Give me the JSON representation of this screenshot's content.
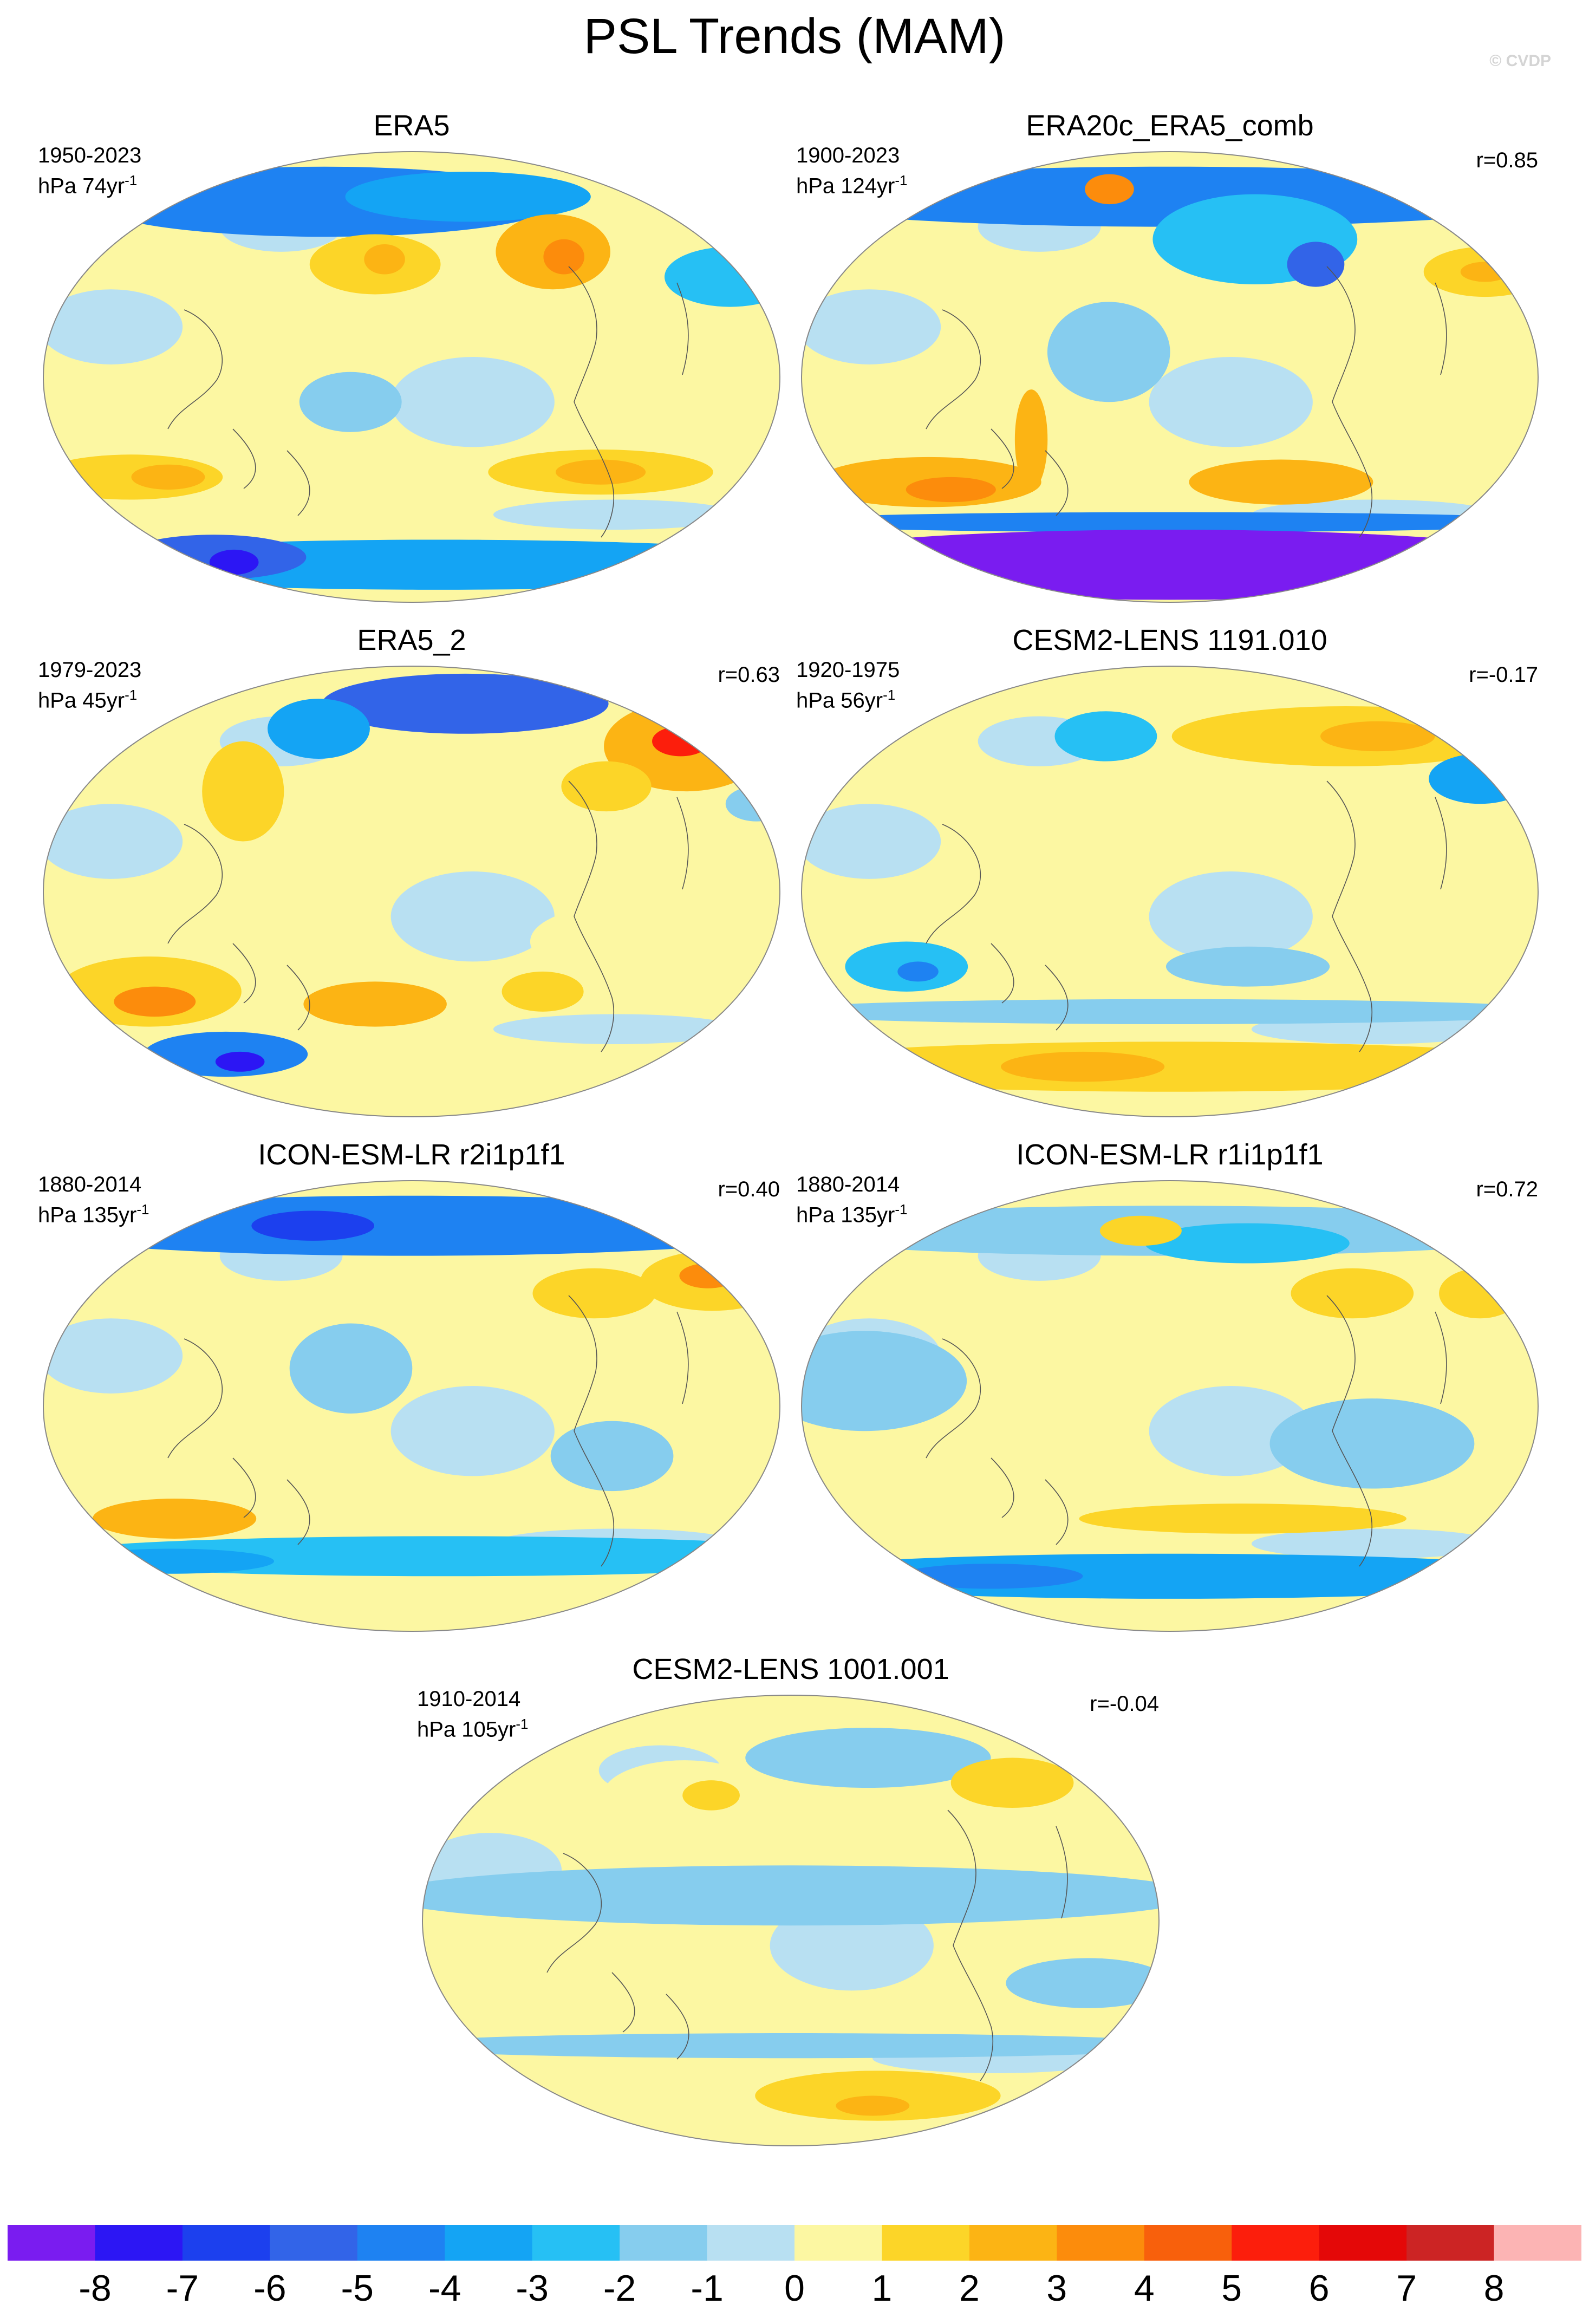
{
  "title": "PSL Trends (MAM)",
  "copyright": "© CVDP",
  "colors": {
    "neg8": "#7a1cf0",
    "neg7": "#2c16f4",
    "neg6": "#1c40ee",
    "neg5": "#3264e8",
    "neg4": "#1e82f2",
    "neg3": "#14a4f4",
    "neg2": "#26c0f4",
    "neg1": "#86cdee",
    "zero": "#b8e0f2",
    "pos1": "#fcf7a2",
    "pos2": "#fcd528",
    "pos3": "#fcb414",
    "pos4": "#fc8c0c",
    "pos5": "#f8600c",
    "pos6": "#fc1e0c",
    "pos7": "#e40808",
    "pos8": "#cc2424",
    "top": "#fcb4b4"
  },
  "panels": [
    {
      "title": "ERA5",
      "years": "1950-2023",
      "units": "hPa 74yr",
      "sup": "-1",
      "corr": ""
    },
    {
      "title": "ERA20c_ERA5_comb",
      "years": "1900-2023",
      "units": "hPa 124yr",
      "sup": "-1",
      "corr": "r=0.85"
    },
    {
      "title": "ERA5_2",
      "years": "1979-2023",
      "units": "hPa 45yr",
      "sup": "-1",
      "corr": "r=0.63"
    },
    {
      "title": "CESM2-LENS 1191.010",
      "years": "1920-1975",
      "units": "hPa 56yr",
      "sup": "-1",
      "corr": "r=-0.17"
    },
    {
      "title": "ICON-ESM-LR r2i1p1f1",
      "years": "1880-2014",
      "units": "hPa 135yr",
      "sup": "-1",
      "corr": "r=0.40"
    },
    {
      "title": "ICON-ESM-LR r1i1p1f1",
      "years": "1880-2014",
      "units": "hPa 135yr",
      "sup": "-1",
      "corr": "r=0.72"
    },
    {
      "title": "CESM2-LENS 1001.001",
      "years": "1910-2014",
      "units": "hPa 105yr",
      "sup": "-1",
      "corr": "r=-0.04"
    }
  ],
  "chart_data": {
    "type": "heatmap",
    "title": "PSL Trends (MAM)",
    "projection": "robinson",
    "colorbar": {
      "ticks": [
        "-8",
        "-7",
        "-6",
        "-5",
        "-4",
        "-3",
        "-2",
        "-1",
        "0",
        "1",
        "2",
        "3",
        "4",
        "5",
        "6",
        "7",
        "8"
      ],
      "levels": [
        -8,
        -7,
        -6,
        -5,
        -4,
        -3,
        -2,
        -1,
        0,
        1,
        2,
        3,
        4,
        5,
        6,
        7,
        8
      ],
      "units": "hPa"
    },
    "fields": [
      {
        "panel": "ERA5",
        "blobs": [
          {
            "lon": -60,
            "lat": 70,
            "rx": 115,
            "ry": 14,
            "v": -4
          },
          {
            "lon": 40,
            "lat": 72,
            "rx": 60,
            "ry": 10,
            "v": -3
          },
          {
            "lon": 80,
            "lat": 50,
            "rx": 28,
            "ry": 15,
            "v": 3
          },
          {
            "lon": 85,
            "lat": 48,
            "rx": 10,
            "ry": 7,
            "v": 4
          },
          {
            "lon": 170,
            "lat": 40,
            "rx": 32,
            "ry": 12,
            "v": -2
          },
          {
            "lon": -20,
            "lat": 45,
            "rx": 32,
            "ry": 12,
            "v": 2
          },
          {
            "lon": -15,
            "lat": 47,
            "rx": 10,
            "ry": 6,
            "v": 3
          },
          {
            "lon": 100,
            "lat": -38,
            "rx": 55,
            "ry": 9,
            "v": 2
          },
          {
            "lon": 100,
            "lat": -38,
            "rx": 22,
            "ry": 5,
            "v": 3
          },
          {
            "lon": -150,
            "lat": -40,
            "rx": 45,
            "ry": 9,
            "v": 2
          },
          {
            "lon": -130,
            "lat": -40,
            "rx": 18,
            "ry": 5,
            "v": 3
          },
          {
            "lon": 20,
            "lat": -75,
            "rx": 200,
            "ry": 10,
            "v": -3
          },
          {
            "lon": -140,
            "lat": -72,
            "rx": 45,
            "ry": 9,
            "v": -5
          },
          {
            "lon": -130,
            "lat": -74,
            "rx": 12,
            "ry": 5,
            "v": -7
          },
          {
            "lon": -30,
            "lat": -10,
            "rx": 25,
            "ry": 12,
            "v": -1
          }
        ]
      },
      {
        "panel": "ERA20c_ERA5_comb",
        "blobs": [
          {
            "lon": 0,
            "lat": 72,
            "rx": 200,
            "ry": 12,
            "v": -4
          },
          {
            "lon": 50,
            "lat": 55,
            "rx": 50,
            "ry": 18,
            "v": -2
          },
          {
            "lon": 80,
            "lat": 45,
            "rx": 14,
            "ry": 9,
            "v": -5
          },
          {
            "lon": 170,
            "lat": 42,
            "rx": 30,
            "ry": 10,
            "v": 2
          },
          {
            "lon": 170,
            "lat": 42,
            "rx": 12,
            "ry": 4,
            "v": 3
          },
          {
            "lon": -45,
            "lat": 75,
            "rx": 12,
            "ry": 6,
            "v": 4
          },
          {
            "lon": 60,
            "lat": -42,
            "rx": 45,
            "ry": 9,
            "v": 3
          },
          {
            "lon": -130,
            "lat": -42,
            "rx": 55,
            "ry": 10,
            "v": 3
          },
          {
            "lon": -120,
            "lat": -45,
            "rx": 22,
            "ry": 5,
            "v": 4
          },
          {
            "lon": -70,
            "lat": -25,
            "rx": 8,
            "ry": 20,
            "v": 3
          },
          {
            "lon": 0,
            "lat": -58,
            "rx": 200,
            "ry": 4,
            "v": -4
          },
          {
            "lon": 0,
            "lat": -75,
            "rx": 200,
            "ry": 14,
            "v": -8
          },
          {
            "lon": -30,
            "lat": 10,
            "rx": 30,
            "ry": 20,
            "v": -1
          }
        ]
      },
      {
        "panel": "ERA5_2",
        "blobs": [
          {
            "lon": 40,
            "lat": 75,
            "rx": 70,
            "ry": 12,
            "v": -5
          },
          {
            "lon": -60,
            "lat": 65,
            "rx": 25,
            "ry": 12,
            "v": -3
          },
          {
            "lon": 165,
            "lat": 58,
            "rx": 40,
            "ry": 18,
            "v": 3
          },
          {
            "lon": 165,
            "lat": 60,
            "rx": 14,
            "ry": 6,
            "v": 6
          },
          {
            "lon": -90,
            "lat": 40,
            "rx": 20,
            "ry": 20,
            "v": 2
          },
          {
            "lon": 105,
            "lat": 42,
            "rx": 22,
            "ry": 10,
            "v": 2
          },
          {
            "lon": 180,
            "lat": 35,
            "rx": 15,
            "ry": 7,
            "v": -1
          },
          {
            "lon": -150,
            "lat": -20,
            "rx": 40,
            "ry": 18,
            "v": 1
          },
          {
            "lon": -140,
            "lat": -40,
            "rx": 45,
            "ry": 14,
            "v": 2
          },
          {
            "lon": -140,
            "lat": -44,
            "rx": 20,
            "ry": 6,
            "v": 4
          },
          {
            "lon": -120,
            "lat": -65,
            "rx": 40,
            "ry": 9,
            "v": -4
          },
          {
            "lon": -115,
            "lat": -68,
            "rx": 12,
            "ry": 4,
            "v": -7
          },
          {
            "lon": -20,
            "lat": -45,
            "rx": 35,
            "ry": 9,
            "v": 3
          },
          {
            "lon": 70,
            "lat": -40,
            "rx": 20,
            "ry": 8,
            "v": 2
          },
          {
            "lon": 100,
            "lat": -20,
            "rx": 40,
            "ry": 14,
            "v": 1
          }
        ]
      },
      {
        "panel": "CESM2-LENS 1191.010",
        "blobs": [
          {
            "lon": 110,
            "lat": 62,
            "rx": 85,
            "ry": 12,
            "v": 2
          },
          {
            "lon": 130,
            "lat": 62,
            "rx": 28,
            "ry": 6,
            "v": 3
          },
          {
            "lon": 170,
            "lat": 45,
            "rx": 25,
            "ry": 10,
            "v": -3
          },
          {
            "lon": -40,
            "lat": 62,
            "rx": 25,
            "ry": 10,
            "v": -2
          },
          {
            "lon": -135,
            "lat": -30,
            "rx": 30,
            "ry": 10,
            "v": -2
          },
          {
            "lon": -130,
            "lat": -32,
            "rx": 10,
            "ry": 4,
            "v": -4
          },
          {
            "lon": 40,
            "lat": -30,
            "rx": 40,
            "ry": 8,
            "v": -1
          },
          {
            "lon": 0,
            "lat": -70,
            "rx": 200,
            "ry": 10,
            "v": 2
          },
          {
            "lon": -60,
            "lat": -70,
            "rx": 40,
            "ry": 6,
            "v": 3
          },
          {
            "lon": 0,
            "lat": -48,
            "rx": 200,
            "ry": 5,
            "v": -1
          }
        ]
      },
      {
        "panel": "ICON-ESM-LR r2i1p1f1",
        "blobs": [
          {
            "lon": 0,
            "lat": 72,
            "rx": 200,
            "ry": 12,
            "v": -4
          },
          {
            "lon": -70,
            "lat": 72,
            "rx": 30,
            "ry": 6,
            "v": -6
          },
          {
            "lon": 170,
            "lat": 50,
            "rx": 35,
            "ry": 12,
            "v": 2
          },
          {
            "lon": 170,
            "lat": 52,
            "rx": 14,
            "ry": 5,
            "v": 4
          },
          {
            "lon": 100,
            "lat": 45,
            "rx": 30,
            "ry": 10,
            "v": 2
          },
          {
            "lon": -130,
            "lat": -45,
            "rx": 40,
            "ry": 8,
            "v": 3
          },
          {
            "lon": 20,
            "lat": -60,
            "rx": 200,
            "ry": 8,
            "v": -2
          },
          {
            "lon": -150,
            "lat": -62,
            "rx": 50,
            "ry": 5,
            "v": -3
          },
          {
            "lon": 100,
            "lat": -20,
            "rx": 30,
            "ry": 14,
            "v": -1
          },
          {
            "lon": -30,
            "lat": 15,
            "rx": 30,
            "ry": 18,
            "v": -1
          }
        ]
      },
      {
        "panel": "ICON-ESM-LR r1i1p1f1",
        "blobs": [
          {
            "lon": 0,
            "lat": 70,
            "rx": 200,
            "ry": 10,
            "v": -1
          },
          {
            "lon": 50,
            "lat": 65,
            "rx": 50,
            "ry": 8,
            "v": -2
          },
          {
            "lon": -20,
            "lat": 70,
            "rx": 20,
            "ry": 6,
            "v": 2
          },
          {
            "lon": 100,
            "lat": 45,
            "rx": 30,
            "ry": 10,
            "v": 2
          },
          {
            "lon": 170,
            "lat": 45,
            "rx": 20,
            "ry": 10,
            "v": 2
          },
          {
            "lon": 40,
            "lat": -45,
            "rx": 80,
            "ry": 6,
            "v": 2
          },
          {
            "lon": 0,
            "lat": -68,
            "rx": 200,
            "ry": 9,
            "v": -3
          },
          {
            "lon": -120,
            "lat": -68,
            "rx": 45,
            "ry": 5,
            "v": -4
          },
          {
            "lon": 100,
            "lat": -15,
            "rx": 50,
            "ry": 18,
            "v": -1
          },
          {
            "lon": -150,
            "lat": 10,
            "rx": 50,
            "ry": 20,
            "v": -1
          }
        ]
      },
      {
        "panel": "CESM2-LENS 1001.001",
        "blobs": [
          {
            "lon": 50,
            "lat": 65,
            "rx": 60,
            "ry": 12,
            "v": -1
          },
          {
            "lon": -60,
            "lat": 50,
            "rx": 40,
            "ry": 14,
            "v": 1
          },
          {
            "lon": -45,
            "lat": 50,
            "rx": 14,
            "ry": 6,
            "v": 2
          },
          {
            "lon": 130,
            "lat": 55,
            "rx": 30,
            "ry": 10,
            "v": 2
          },
          {
            "lon": 0,
            "lat": 10,
            "rx": 200,
            "ry": 12,
            "v": -1
          },
          {
            "lon": -100,
            "lat": -20,
            "rx": 30,
            "ry": 12,
            "v": 1
          },
          {
            "lon": 150,
            "lat": -25,
            "rx": 40,
            "ry": 10,
            "v": -1
          },
          {
            "lon": 60,
            "lat": -70,
            "rx": 60,
            "ry": 10,
            "v": 2
          },
          {
            "lon": 60,
            "lat": -74,
            "rx": 18,
            "ry": 4,
            "v": 3
          },
          {
            "lon": 0,
            "lat": -50,
            "rx": 200,
            "ry": 5,
            "v": -1
          }
        ]
      }
    ]
  }
}
